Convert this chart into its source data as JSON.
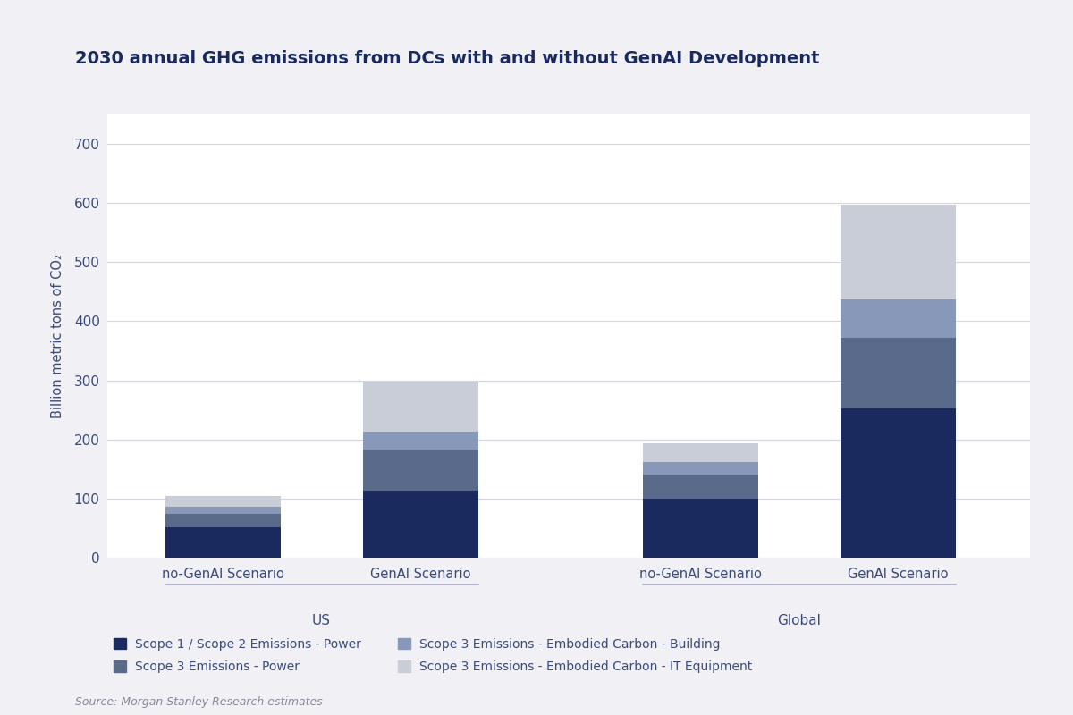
{
  "title": "2030 annual GHG emissions from DCs with and without GenAI Development",
  "ylabel": "Billion metric tons of CO₂",
  "source": "Source: Morgan Stanley Research estimates",
  "groups": [
    "US",
    "Global"
  ],
  "bar_labels": [
    "no-GenAI Scenario",
    "GenAI Scenario"
  ],
  "categories": [
    "Scope 1 / Scope 2 Emissions - Power",
    "Scope 3 Emissions - Power",
    "Scope 3 Emissions - Embodied Carbon - Building",
    "Scope 3 Emissions - Embodied Carbon - IT Equipment"
  ],
  "colors": [
    "#1a2a5e",
    "#5a6a8a",
    "#8898b8",
    "#c8cdd8"
  ],
  "values": {
    "US_noGenAI": [
      52,
      22,
      12,
      18
    ],
    "US_GenAI": [
      113,
      70,
      30,
      85
    ],
    "Global_noGenAI": [
      100,
      40,
      22,
      32
    ],
    "Global_GenAI": [
      252,
      120,
      65,
      160
    ]
  },
  "ylim": [
    0,
    750
  ],
  "yticks": [
    0,
    100,
    200,
    300,
    400,
    500,
    600,
    700
  ],
  "outer_bg": "#f0f0f5",
  "plot_bg": "#ffffff",
  "title_color": "#1a2a5e",
  "axis_label_color": "#3a4a7a",
  "tick_label_color": "#3a4a7a",
  "grid_color": "#d5d5e0",
  "group_label_color": "#3a4a7a",
  "bar_width": 0.7,
  "x_positions": [
    0.7,
    1.9,
    3.6,
    4.8
  ]
}
